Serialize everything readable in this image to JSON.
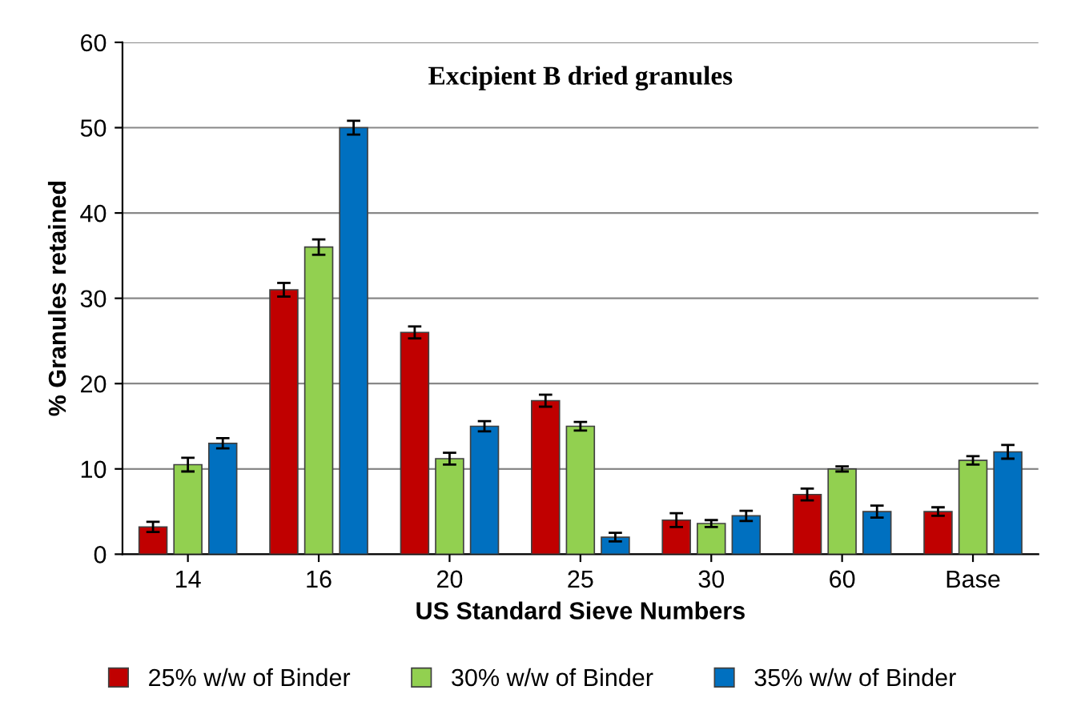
{
  "chart_data": {
    "type": "bar",
    "title": "Excipient B dried granules",
    "xlabel": "US Standard Sieve Numbers",
    "ylabel": "% Granules retained",
    "categories": [
      "14",
      "16",
      "20",
      "25",
      "30",
      "60",
      "Base"
    ],
    "series": [
      {
        "name": "25% w/w of Binder",
        "color": "#c00000",
        "values": [
          3.2,
          31,
          26,
          18,
          4,
          7,
          5
        ],
        "errors": [
          0.6,
          0.8,
          0.7,
          0.7,
          0.8,
          0.7,
          0.5
        ]
      },
      {
        "name": "30% w/w of Binder",
        "color": "#92d050",
        "values": [
          10.5,
          36,
          11.2,
          15,
          3.6,
          10,
          11
        ],
        "errors": [
          0.8,
          0.9,
          0.7,
          0.5,
          0.4,
          0.3,
          0.5
        ]
      },
      {
        "name": "35% w/w of Binder",
        "color": "#0070c0",
        "values": [
          13,
          50,
          15,
          2,
          4.5,
          5,
          12
        ],
        "errors": [
          0.6,
          0.8,
          0.6,
          0.5,
          0.6,
          0.7,
          0.8
        ]
      }
    ],
    "ylim": [
      0,
      60
    ],
    "yticks": [
      0,
      10,
      20,
      30,
      40,
      50,
      60
    ],
    "grid": "y",
    "legend": "bottom"
  }
}
